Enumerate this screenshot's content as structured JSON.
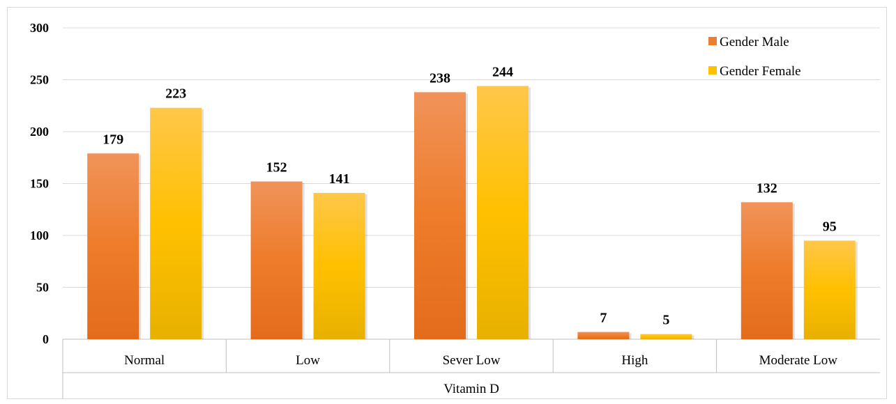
{
  "chart_data": {
    "type": "bar",
    "categories": [
      "Normal",
      "Low",
      "Sever Low",
      "High",
      "Moderate Low"
    ],
    "series": [
      {
        "name": "Gender Male",
        "values": [
          179,
          152,
          238,
          7,
          132
        ],
        "color": "#ED7D31"
      },
      {
        "name": "Gender Female",
        "values": [
          223,
          141,
          244,
          5,
          95
        ],
        "color": "#FFC000"
      }
    ],
    "xlabel": "Vitamin D",
    "ylabel": "",
    "ylim": [
      0,
      300
    ],
    "yticks": [
      0,
      50,
      100,
      150,
      200,
      250,
      300
    ],
    "grid": true,
    "legend_position": "top-right",
    "data_labels": true
  }
}
